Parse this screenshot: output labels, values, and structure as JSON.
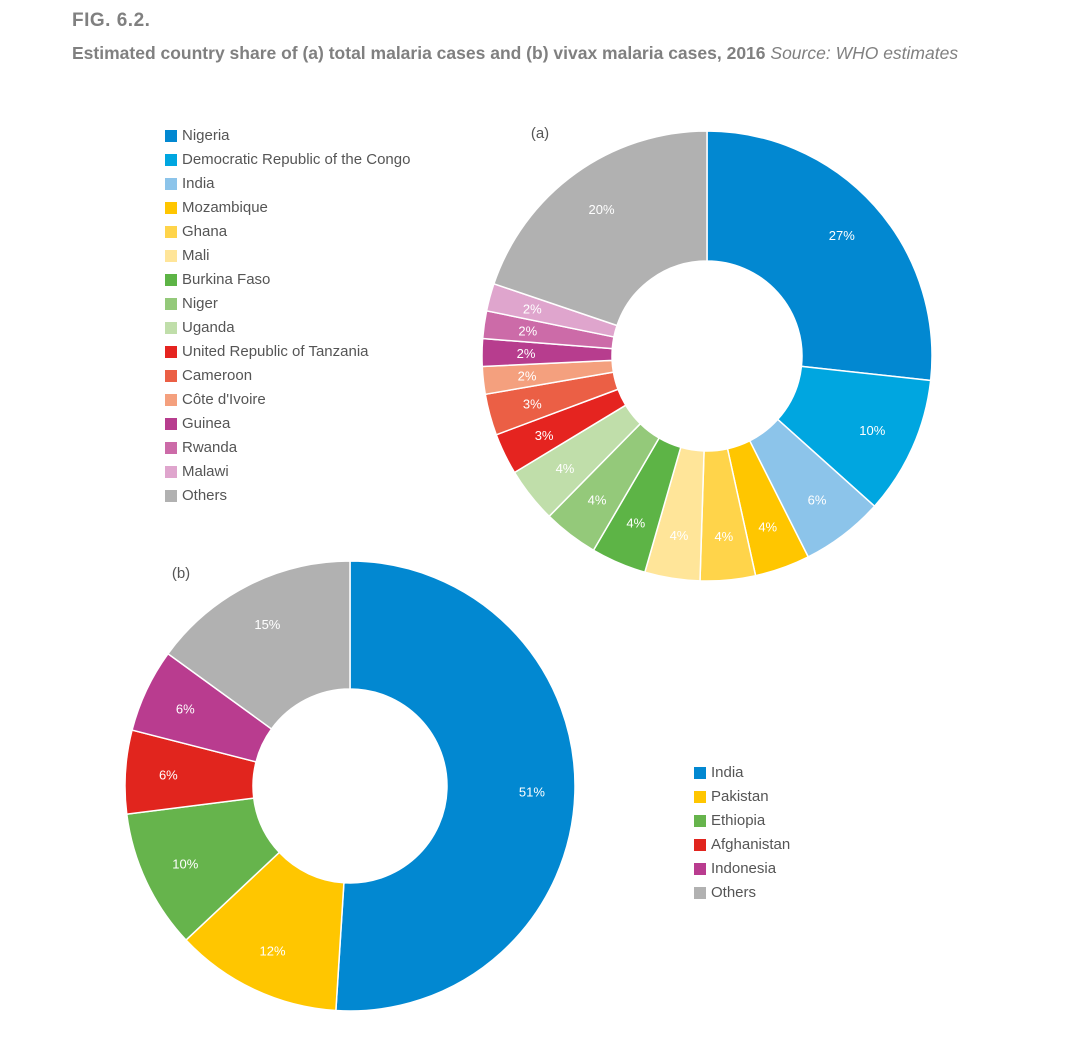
{
  "figure": {
    "label": "FIG. 6.2.",
    "title": "Estimated country share of (a) total malaria cases and (b) vivax malaria cases, 2016",
    "source": "Source: WHO estimates"
  },
  "chart_data": [
    {
      "type": "pie",
      "donut": true,
      "panel_label": "(a)",
      "legend_placement": "left",
      "categories": [
        "Nigeria",
        "Democratic Republic of the Congo",
        "India",
        "Mozambique",
        "Ghana",
        "Mali",
        "Burkina Faso",
        "Niger",
        "Uganda",
        "United Republic of Tanzania",
        "Cameroon",
        "Côte d'Ivoire",
        "Guinea",
        "Rwanda",
        "Malawi",
        "Others"
      ],
      "values": [
        27,
        10,
        6,
        4,
        4,
        4,
        4,
        4,
        4,
        3,
        3,
        2,
        2,
        2,
        2,
        20
      ],
      "data_labels": [
        "27%",
        "10%",
        "6%",
        "4%",
        "4%",
        "4%",
        "4%",
        "4%",
        "4%",
        "3%",
        "3%",
        "2%",
        "2%",
        "2%",
        "2%",
        "20%"
      ],
      "colors": [
        "#0288d1",
        "#00a6e0",
        "#8cc4ea",
        "#ffc600",
        "#ffd44a",
        "#ffe599",
        "#5db446",
        "#94c97a",
        "#c0deaa",
        "#e52420",
        "#eb5f45",
        "#f4a07e",
        "#b73d8e",
        "#cc6ba8",
        "#dfa5cd",
        "#b1b1b1"
      ]
    },
    {
      "type": "pie",
      "donut": true,
      "panel_label": "(b)",
      "legend_placement": "right",
      "categories": [
        "India",
        "Pakistan",
        "Ethiopia",
        "Afghanistan",
        "Indonesia",
        "Others"
      ],
      "values": [
        51,
        12,
        10,
        6,
        6,
        15
      ],
      "data_labels": [
        "51%",
        "12%",
        "10%",
        "6%",
        "6%",
        "15%"
      ],
      "colors": [
        "#0288d1",
        "#ffc600",
        "#66b44c",
        "#e1251e",
        "#b93c8f",
        "#b1b1b1"
      ]
    }
  ]
}
